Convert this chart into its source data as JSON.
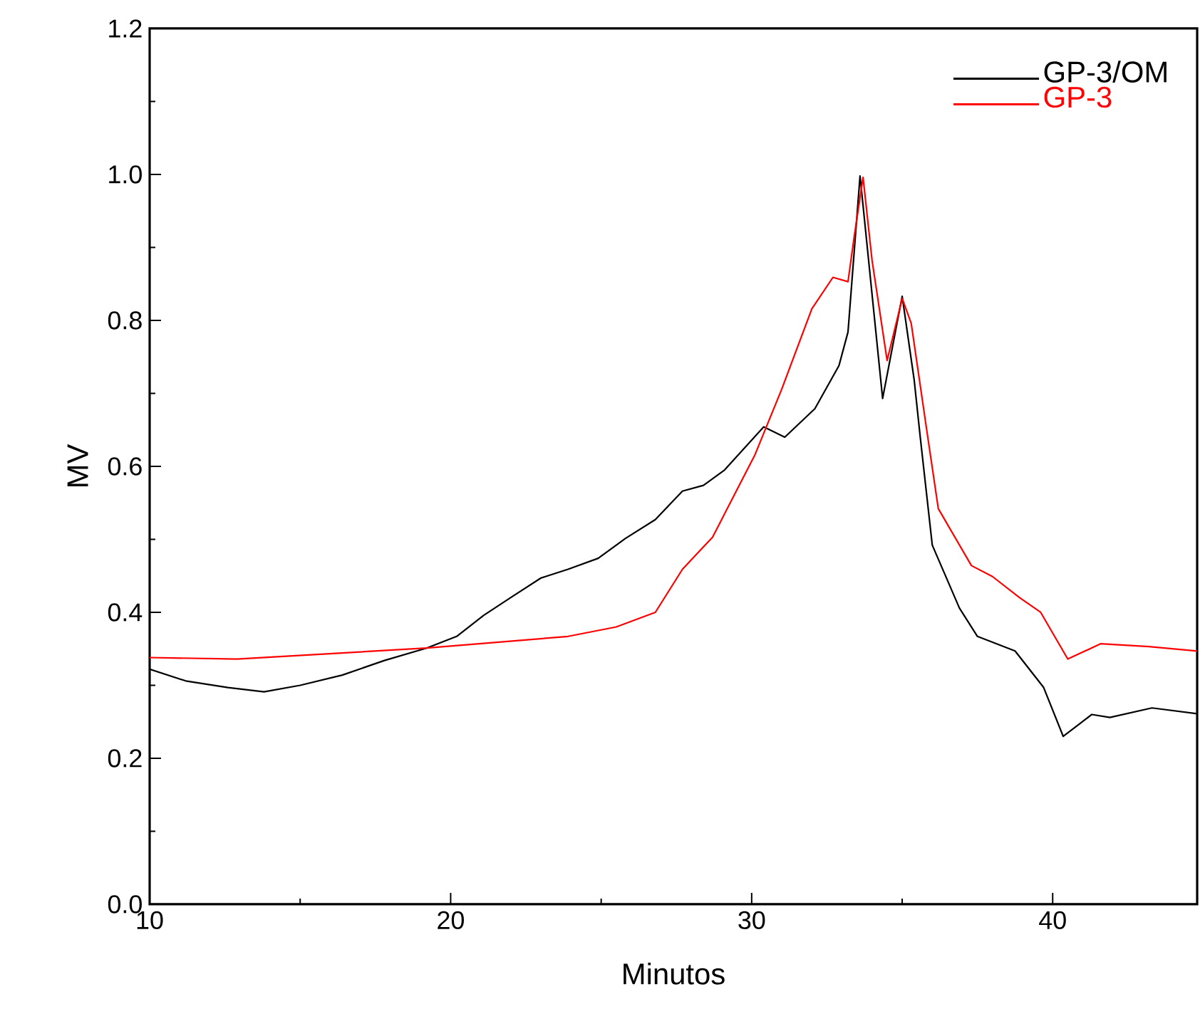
{
  "chart_data": {
    "type": "line",
    "xlabel": "Minutos",
    "ylabel": "MV",
    "xlim": [
      10,
      44.8
    ],
    "ylim": [
      0,
      1.2
    ],
    "xticks": [
      10,
      20,
      30,
      40
    ],
    "yticks": [
      {
        "value": 0,
        "label": "0.0"
      },
      {
        "value": 0.2,
        "label": "0.2"
      },
      {
        "value": 0.4,
        "label": "0.4"
      },
      {
        "value": 0.6,
        "label": "0.6"
      },
      {
        "value": 0.8,
        "label": "0.8"
      },
      {
        "value": 1.0,
        "label": "1.0"
      },
      {
        "value": 1.2,
        "label": "1.2"
      }
    ],
    "grid": false,
    "legend": "top right",
    "marker": "none",
    "line_style": "solid",
    "series": [
      {
        "name": "GP-3/OM",
        "color": "#000000",
        "x": [
          10,
          11.2,
          12.6,
          13.8,
          15,
          16.4,
          17.8,
          19.2,
          20.2,
          21.1,
          22.1,
          23.0,
          23.9,
          24.9,
          25.8,
          26.8,
          27.7,
          28.4,
          29.1,
          30.4,
          31.1,
          32.1,
          32.9,
          33.2,
          33.6,
          34.35,
          35.0,
          35.4,
          35.6,
          36.0,
          36.9,
          37.5,
          38.75,
          39.7,
          40.35,
          41.3,
          41.9,
          43.3,
          44.8
        ],
        "values": [
          0.322,
          0.306,
          0.297,
          0.291,
          0.3,
          0.314,
          0.334,
          0.351,
          0.367,
          0.396,
          0.423,
          0.447,
          0.459,
          0.474,
          0.501,
          0.527,
          0.566,
          0.574,
          0.595,
          0.654,
          0.64,
          0.679,
          0.738,
          0.784,
          0.998,
          0.693,
          0.833,
          0.718,
          0.64,
          0.492,
          0.406,
          0.367,
          0.347,
          0.297,
          0.23,
          0.26,
          0.256,
          0.269,
          0.261
        ]
      },
      {
        "name": "GP-3",
        "color": "#ff0000",
        "x": [
          10,
          12.9,
          19.2,
          23.9,
          25.5,
          26.8,
          27.7,
          28.7,
          30.1,
          31.0,
          32.0,
          32.7,
          33.2,
          33.4,
          33.7,
          34.0,
          34.5,
          35.0,
          35.3,
          35.8,
          36.2,
          37.3,
          38.0,
          38.9,
          39.6,
          40.5,
          41.6,
          43.2,
          44.8
        ],
        "values": [
          0.338,
          0.336,
          0.351,
          0.367,
          0.38,
          0.4,
          0.459,
          0.503,
          0.615,
          0.706,
          0.816,
          0.859,
          0.853,
          0.913,
          0.996,
          0.882,
          0.745,
          0.83,
          0.796,
          0.654,
          0.542,
          0.464,
          0.449,
          0.42,
          0.4,
          0.336,
          0.357,
          0.353,
          0.347
        ]
      }
    ]
  }
}
